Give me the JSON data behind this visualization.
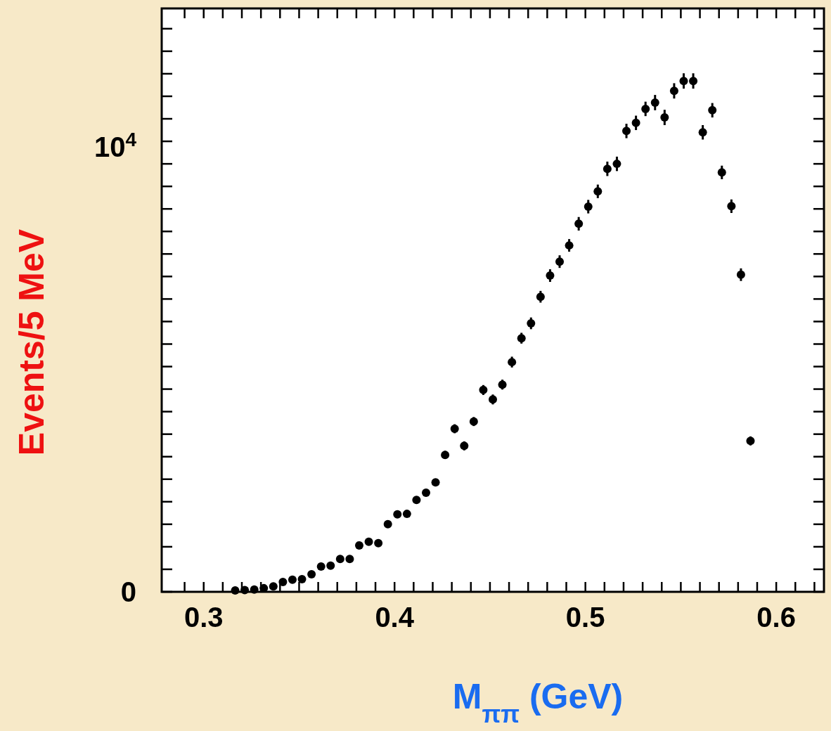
{
  "chart_data": {
    "type": "scatter",
    "xlabel": "M$_{ππ}$  (GeV)",
    "ylabel": "Events/5 MeV",
    "x": [
      0.3165,
      0.3215,
      0.3265,
      0.3315,
      0.3365,
      0.3415,
      0.3465,
      0.3515,
      0.3565,
      0.3615,
      0.3665,
      0.3715,
      0.3765,
      0.3815,
      0.3865,
      0.3915,
      0.3965,
      0.4015,
      0.4065,
      0.4115,
      0.4165,
      0.4215,
      0.4265,
      0.4315,
      0.4365,
      0.4415,
      0.4465,
      0.4515,
      0.4565,
      0.4615,
      0.4665,
      0.4715,
      0.4765,
      0.4815,
      0.4865,
      0.4915,
      0.4965,
      0.5015,
      0.5065,
      0.5115,
      0.5165,
      0.5215,
      0.5265,
      0.5315,
      0.5365,
      0.5415,
      0.5465,
      0.5515,
      0.5565,
      0.5615,
      0.5665,
      0.5715,
      0.5765,
      0.5815,
      0.5865
    ],
    "values": [
      30,
      40,
      50,
      80,
      120,
      220,
      270,
      280,
      390,
      560,
      580,
      730,
      730,
      1030,
      1110,
      1080,
      1500,
      1720,
      1730,
      2040,
      2200,
      2430,
      3040,
      3620,
      3240,
      3780,
      4480,
      4270,
      4600,
      5100,
      5630,
      5960,
      6550,
      7020,
      7330,
      7690,
      8170,
      8550,
      8890,
      9390,
      9500,
      10230,
      10410,
      10720,
      10860,
      10530,
      11120,
      11340,
      11340,
      10200,
      10690,
      9310,
      8560,
      7040,
      3350
    ],
    "errors": [
      null,
      null,
      null,
      null,
      null,
      40,
      40,
      40,
      50,
      50,
      50,
      60,
      60,
      60,
      60,
      60,
      70,
      70,
      70,
      80,
      80,
      80,
      90,
      100,
      100,
      100,
      110,
      110,
      110,
      120,
      120,
      130,
      130,
      140,
      140,
      140,
      150,
      150,
      150,
      160,
      160,
      160,
      160,
      160,
      170,
      170,
      170,
      170,
      170,
      160,
      160,
      150,
      150,
      140,
      100
    ],
    "color": "#000000",
    "marker": "circle",
    "xlim": [
      0.278,
      0.625
    ],
    "xticks": [
      0.3,
      0.4,
      0.5,
      0.6,
      {
        "value": 0.29,
        "label": null
      },
      {
        "value": 0.31,
        "label": null
      },
      {
        "value": 0.32,
        "label": null
      },
      {
        "value": 0.33,
        "label": null
      },
      {
        "value": 0.34,
        "label": null
      },
      {
        "value": 0.35,
        "label": null
      },
      {
        "value": 0.36,
        "label": null
      },
      {
        "value": 0.37,
        "label": null
      },
      {
        "value": 0.38,
        "label": null
      },
      {
        "value": 0.39,
        "label": null
      },
      {
        "value": 0.41,
        "label": null
      },
      {
        "value": 0.42,
        "label": null
      },
      {
        "value": 0.43,
        "label": null
      },
      {
        "value": 0.44,
        "label": null
      },
      {
        "value": 0.45,
        "label": null
      },
      {
        "value": 0.46,
        "label": null
      },
      {
        "value": 0.47,
        "label": null
      },
      {
        "value": 0.48,
        "label": null
      },
      {
        "value": 0.49,
        "label": null
      },
      {
        "value": 0.51,
        "label": null
      },
      {
        "value": 0.52,
        "label": null
      },
      {
        "value": 0.53,
        "label": null
      },
      {
        "value": 0.54,
        "label": null
      },
      {
        "value": 0.55,
        "label": null
      },
      {
        "value": 0.56,
        "label": null
      },
      {
        "value": 0.57,
        "label": null
      },
      {
        "value": 0.58,
        "label": null
      },
      {
        "value": 0.59,
        "label": null
      },
      {
        "value": 0.61,
        "label": null
      },
      {
        "value": 0.62,
        "label": null
      }
    ],
    "ylim": [
      0,
      12950
    ],
    "yticks": [
      0,
      {
        "value": 10000,
        "label": "10$^{4}$"
      },
      {
        "value": 500,
        "label": null
      },
      {
        "value": 1000,
        "label": null
      },
      {
        "value": 1500,
        "label": null
      },
      {
        "value": 2000,
        "label": null
      },
      {
        "value": 2500,
        "label": null
      },
      {
        "value": 3000,
        "label": null
      },
      {
        "value": 3500,
        "label": null
      },
      {
        "value": 4000,
        "label": null
      },
      {
        "value": 4500,
        "label": null
      },
      {
        "value": 5000,
        "label": null
      },
      {
        "value": 5500,
        "label": null
      },
      {
        "value": 6000,
        "label": null
      },
      {
        "value": 6500,
        "label": null
      },
      {
        "value": 7000,
        "label": null
      },
      {
        "value": 7500,
        "label": null
      },
      {
        "value": 8000,
        "label": null
      },
      {
        "value": 8500,
        "label": null
      },
      {
        "value": 9000,
        "label": null
      },
      {
        "value": 9500,
        "label": null
      },
      {
        "value": 10500,
        "label": null
      },
      {
        "value": 11000,
        "label": null
      },
      {
        "value": 11500,
        "label": null
      },
      {
        "value": 12000,
        "label": null
      },
      {
        "value": 12500,
        "label": null
      }
    ],
    "grid": false
  }
}
